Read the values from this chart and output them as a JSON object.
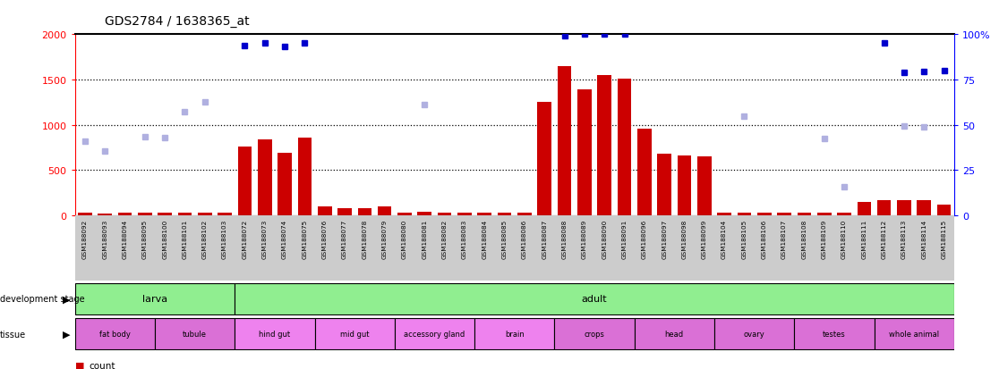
{
  "title": "GDS2784 / 1638365_at",
  "samples": [
    "GSM188092",
    "GSM188093",
    "GSM188094",
    "GSM188095",
    "GSM188100",
    "GSM188101",
    "GSM188102",
    "GSM188103",
    "GSM188072",
    "GSM188073",
    "GSM188074",
    "GSM188075",
    "GSM188076",
    "GSM188077",
    "GSM188078",
    "GSM188079",
    "GSM188080",
    "GSM188081",
    "GSM188082",
    "GSM188083",
    "GSM188084",
    "GSM188085",
    "GSM188086",
    "GSM188087",
    "GSM188088",
    "GSM188089",
    "GSM188090",
    "GSM188091",
    "GSM188096",
    "GSM188097",
    "GSM188098",
    "GSM188099",
    "GSM188104",
    "GSM188105",
    "GSM188106",
    "GSM188107",
    "GSM188108",
    "GSM188109",
    "GSM188110",
    "GSM188111",
    "GSM188112",
    "GSM188113",
    "GSM188114",
    "GSM188115"
  ],
  "count": [
    30,
    25,
    30,
    30,
    35,
    30,
    35,
    30,
    760,
    840,
    690,
    855,
    100,
    80,
    80,
    100,
    30,
    40,
    30,
    30,
    30,
    30,
    30,
    1250,
    1650,
    1390,
    1550,
    1510,
    960,
    680,
    660,
    650,
    30,
    30,
    30,
    30,
    30,
    30,
    30,
    150,
    165,
    165,
    170,
    125
  ],
  "percentile_rank": [
    null,
    null,
    null,
    null,
    null,
    null,
    null,
    null,
    1880,
    1900,
    1870,
    1900,
    null,
    null,
    null,
    null,
    null,
    null,
    null,
    null,
    null,
    null,
    null,
    null,
    1980,
    2000,
    2000,
    2000,
    null,
    null,
    null,
    null,
    null,
    null,
    null,
    null,
    null,
    null,
    null,
    null,
    1900,
    1580,
    1590,
    1600
  ],
  "absent_value": [
    820,
    710,
    null,
    870,
    860,
    1150,
    1250,
    null,
    null,
    null,
    null,
    null,
    null,
    null,
    null,
    null,
    null,
    1220,
    null,
    null,
    null,
    null,
    null,
    null,
    null,
    null,
    null,
    null,
    null,
    null,
    null,
    null,
    null,
    1100,
    null,
    null,
    null,
    850,
    320,
    null,
    null,
    990,
    975,
    null
  ],
  "development_stage": [
    {
      "label": "larva",
      "start": 0,
      "end": 7,
      "color": "#90EE90"
    },
    {
      "label": "adult",
      "start": 8,
      "end": 43,
      "color": "#90EE90"
    }
  ],
  "tissue": [
    {
      "label": "fat body",
      "start": 0,
      "end": 3,
      "color": "#DA70D6"
    },
    {
      "label": "tubule",
      "start": 4,
      "end": 7,
      "color": "#DA70D6"
    },
    {
      "label": "hind gut",
      "start": 8,
      "end": 11,
      "color": "#EE82EE"
    },
    {
      "label": "mid gut",
      "start": 12,
      "end": 15,
      "color": "#EE82EE"
    },
    {
      "label": "accessory gland",
      "start": 16,
      "end": 19,
      "color": "#EE82EE"
    },
    {
      "label": "brain",
      "start": 20,
      "end": 23,
      "color": "#EE82EE"
    },
    {
      "label": "crops",
      "start": 24,
      "end": 27,
      "color": "#DA70D6"
    },
    {
      "label": "head",
      "start": 28,
      "end": 31,
      "color": "#DA70D6"
    },
    {
      "label": "ovary",
      "start": 32,
      "end": 35,
      "color": "#DA70D6"
    },
    {
      "label": "testes",
      "start": 36,
      "end": 39,
      "color": "#DA70D6"
    },
    {
      "label": "whole animal",
      "start": 40,
      "end": 43,
      "color": "#DA70D6"
    }
  ],
  "ylim_left": [
    0,
    2000
  ],
  "ylim_right": [
    0,
    100
  ],
  "bar_color": "#CC0000",
  "rank_color": "#0000CC",
  "absent_val_color": "#b0b0e0",
  "absent_val_bar_color": "#f0b0b0",
  "grid_yticks": [
    500,
    1000,
    1500
  ],
  "xtick_bg": "#cccccc"
}
